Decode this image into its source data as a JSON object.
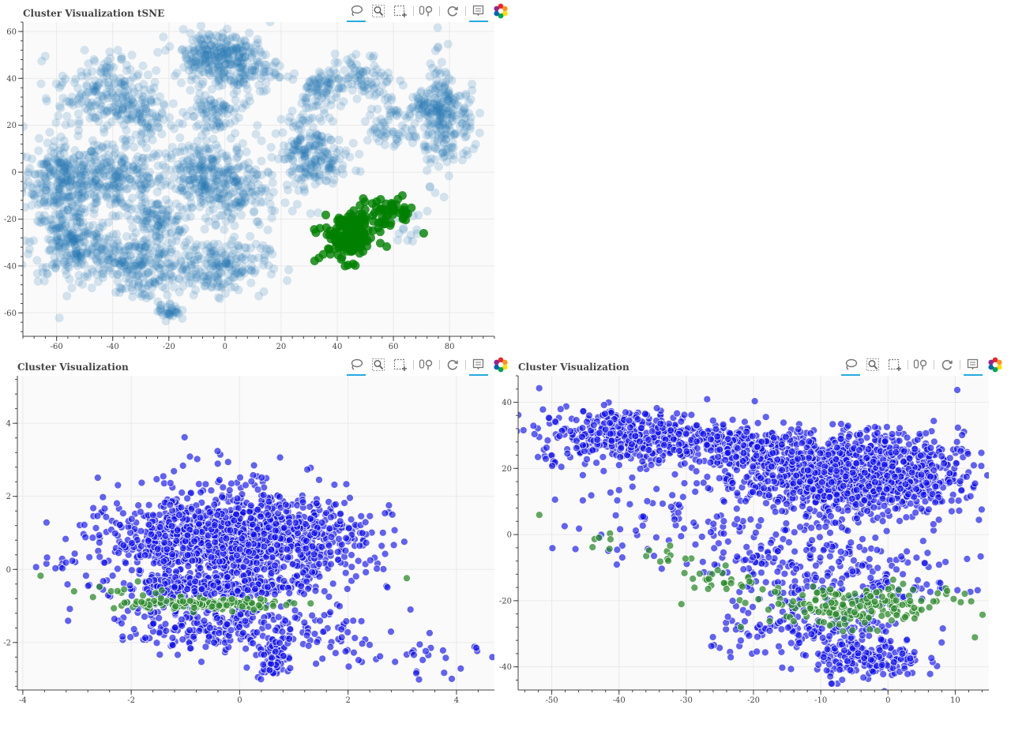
{
  "toolbar": {
    "tools": [
      {
        "icon": "lasso-select-icon",
        "active": true
      },
      {
        "icon": "box-zoom-icon",
        "active": false
      },
      {
        "icon": "box-select-icon",
        "active": false
      },
      {
        "icon": "wheel-zoom-icon",
        "active": false
      },
      {
        "icon": "reset-icon",
        "active": false
      },
      {
        "icon": "hover-tooltip-icon",
        "active": true
      },
      {
        "icon": "bokeh-logo-icon",
        "active": false
      }
    ]
  },
  "colors": {
    "background": "#fafafa",
    "grid": "#e9e9e9",
    "axis": "#444444",
    "blue_cluster": "#1f77b4",
    "green_cluster": "#008000",
    "blue_point": "#1010f0",
    "green_point": "#2e8b2e"
  },
  "chart_data": [
    {
      "type": "scatter",
      "title": "Cluster Visualization tSNE",
      "xlim": [
        -72,
        96
      ],
      "ylim": [
        -70,
        64
      ],
      "xticks": [
        -60,
        -40,
        -20,
        0,
        20,
        40,
        60,
        80
      ],
      "yticks": [
        -60,
        -40,
        -20,
        0,
        20,
        40,
        60
      ],
      "grid": true,
      "series": [
        {
          "color": "#1f77b4",
          "opacity": 0.18,
          "clusters": [
            {
              "cx": -58,
              "cy": -3,
              "sx": 7,
              "sy": 8,
              "n": 260
            },
            {
              "cx": -38,
              "cy": -3,
              "sx": 9,
              "sy": 7,
              "n": 230
            },
            {
              "cx": -55,
              "cy": -30,
              "sx": 7,
              "sy": 8,
              "n": 220
            },
            {
              "cx": -33,
              "cy": -38,
              "sx": 10,
              "sy": 6,
              "n": 230
            },
            {
              "cx": -25,
              "cy": -20,
              "sx": 5,
              "sy": 4,
              "n": 90
            },
            {
              "cx": -5,
              "cy": -2,
              "sx": 8,
              "sy": 8,
              "n": 160
            },
            {
              "cx": 5,
              "cy": -10,
              "sx": 7,
              "sy": 9,
              "n": 140
            },
            {
              "cx": -3,
              "cy": -40,
              "sx": 9,
              "sy": 6,
              "n": 200
            },
            {
              "cx": -42,
              "cy": 33,
              "sx": 9,
              "sy": 9,
              "n": 230
            },
            {
              "cx": -27,
              "cy": 22,
              "sx": 5,
              "sy": 5,
              "n": 60
            },
            {
              "cx": -5,
              "cy": 50,
              "sx": 7,
              "sy": 5,
              "n": 180
            },
            {
              "cx": 5,
              "cy": 45,
              "sx": 7,
              "sy": 7,
              "n": 160
            },
            {
              "cx": -5,
              "cy": 25,
              "sx": 5,
              "sy": 5,
              "n": 80
            },
            {
              "cx": -12,
              "cy": -2,
              "sx": 5,
              "sy": 6,
              "n": 70
            },
            {
              "cx": -30,
              "cy": -50,
              "sx": 4,
              "sy": 3,
              "n": 25
            },
            {
              "cx": -20,
              "cy": -59,
              "sx": 2,
              "sy": 2,
              "n": 35
            },
            {
              "cx": 30,
              "cy": 10,
              "sx": 5,
              "sy": 9,
              "n": 190
            },
            {
              "cx": 33,
              "cy": 36,
              "sx": 3,
              "sy": 4,
              "n": 60
            },
            {
              "cx": 48,
              "cy": 40,
              "sx": 6,
              "sy": 5,
              "n": 90
            },
            {
              "cx": 60,
              "cy": 15,
              "sx": 5,
              "sy": 3,
              "n": 40
            },
            {
              "cx": 77,
              "cy": 22,
              "sx": 3,
              "sy": 12,
              "n": 170
            },
            {
              "cx": 84,
              "cy": 22,
              "sx": 3,
              "sy": 8,
              "n": 60
            },
            {
              "cx": 70,
              "cy": 30,
              "sx": 3,
              "sy": 4,
              "n": 40
            },
            {
              "cx": 58,
              "cy": 26,
              "sx": 3,
              "sy": 3,
              "n": 30
            },
            {
              "cx": 65,
              "cy": -25,
              "sx": 3,
              "sy": 4,
              "n": 15
            },
            {
              "cx": 40,
              "cy": 2,
              "sx": 4,
              "sy": 3,
              "n": 25
            }
          ]
        },
        {
          "color": "#008000",
          "opacity": 0.8,
          "clusters": [
            {
              "cx": 44,
              "cy": -28,
              "sx": 5,
              "sy": 5,
              "n": 150
            },
            {
              "cx": 58,
              "cy": -17,
              "sx": 5,
              "sy": 3,
              "n": 50
            },
            {
              "cx": 46,
              "cy": -20,
              "sx": 3,
              "sy": 3,
              "n": 20
            }
          ]
        }
      ]
    },
    {
      "type": "scatter",
      "title": "Cluster Visualization",
      "xlim": [
        -4.1,
        4.7
      ],
      "ylim": [
        -3.3,
        5.3
      ],
      "xticks": [
        -4,
        -2,
        0,
        2,
        4
      ],
      "yticks": [
        -2,
        0,
        2,
        4
      ],
      "grid": true,
      "series": [
        {
          "color": "#1010f0",
          "opacity": 0.65,
          "clusters": [
            {
              "cx": -0.1,
              "cy": 0.8,
              "sx": 1.15,
              "sy": 0.55,
              "n": 1400
            },
            {
              "cx": -0.5,
              "cy": -0.5,
              "sx": 0.9,
              "sy": 0.12,
              "n": 300
            },
            {
              "cx": -0.4,
              "cy": -1.5,
              "sx": 0.9,
              "sy": 0.35,
              "n": 260
            },
            {
              "cx": 0.6,
              "cy": -2.4,
              "sx": 0.15,
              "sy": 0.3,
              "n": 80
            },
            {
              "cx": 0.1,
              "cy": 2.2,
              "sx": 1.0,
              "sy": 0.6,
              "n": 70
            },
            {
              "cx": 3.0,
              "cy": -2.3,
              "sx": 0.8,
              "sy": 0.35,
              "n": 35
            },
            {
              "cx": -3.4,
              "cy": 0.2,
              "sx": 0.2,
              "sy": 0.1,
              "n": 8
            },
            {
              "cx": 1.5,
              "cy": -1.7,
              "sx": 0.5,
              "sy": 0.5,
              "n": 40
            }
          ]
        },
        {
          "color": "#2e8b2e",
          "opacity": 0.75,
          "clusters": [
            {
              "cx": -0.6,
              "cy": -0.95,
              "sx": 0.75,
              "sy": 0.08,
              "n": 150
            },
            {
              "cx": -2.2,
              "cy": -0.6,
              "sx": 0.4,
              "sy": 0.12,
              "n": 10
            },
            {
              "cx": -3.6,
              "cy": -0.1,
              "sx": 0.05,
              "sy": 0.05,
              "n": 1
            },
            {
              "cx": 3.2,
              "cy": -0.4,
              "sx": 0.05,
              "sy": 0.05,
              "n": 1
            }
          ]
        }
      ]
    },
    {
      "type": "scatter",
      "title": "Cluster Visualization",
      "xlim": [
        -55,
        15
      ],
      "ylim": [
        -47,
        48
      ],
      "xticks": [
        -50,
        -40,
        -30,
        -20,
        -10,
        0,
        10
      ],
      "yticks": [
        -40,
        -20,
        0,
        20,
        40
      ],
      "grid": true,
      "series": [
        {
          "color": "#1010f0",
          "opacity": 0.65,
          "clusters": [
            {
              "cx": -5,
              "cy": 18,
              "sx": 8,
              "sy": 6,
              "n": 1300
            },
            {
              "cx": -38,
              "cy": 30,
              "sx": 7,
              "sy": 4,
              "n": 420
            },
            {
              "cx": -22,
              "cy": 26,
              "sx": 6,
              "sy": 4,
              "n": 250
            },
            {
              "cx": -12,
              "cy": -8,
              "sx": 7,
              "sy": 7,
              "n": 200
            },
            {
              "cx": -3,
              "cy": -38,
              "sx": 4,
              "sy": 3,
              "n": 180
            },
            {
              "cx": -10,
              "cy": -30,
              "sx": 8,
              "sy": 4,
              "n": 160
            },
            {
              "cx": -28,
              "cy": 5,
              "sx": 8,
              "sy": 8,
              "n": 60
            },
            {
              "cx": -38,
              "cy": 8,
              "sx": 6,
              "sy": 8,
              "n": 40
            },
            {
              "cx": -50,
              "cy": 22,
              "sx": 1,
              "sy": 1,
              "n": 4
            },
            {
              "cx": 2,
              "cy": -15,
              "sx": 5,
              "sy": 4,
              "n": 60
            }
          ]
        },
        {
          "color": "#2e8b2e",
          "opacity": 0.75,
          "clusters": [
            {
              "cx": -5,
              "cy": -22,
              "sx": 7,
              "sy": 3,
              "n": 180
            },
            {
              "cx": -24,
              "cy": -13,
              "sx": 3,
              "sy": 3,
              "n": 30
            },
            {
              "cx": -42,
              "cy": -3,
              "sx": 1.5,
              "sy": 1.5,
              "n": 6
            },
            {
              "cx": -31,
              "cy": -8,
              "sx": 2,
              "sy": 2,
              "n": 10
            },
            {
              "cx": -52,
              "cy": 6,
              "sx": 0.3,
              "sy": 0.3,
              "n": 1
            },
            {
              "cx": 12,
              "cy": -20,
              "sx": 0.3,
              "sy": 0.3,
              "n": 1
            },
            {
              "cx": 9,
              "cy": -17,
              "sx": 0.5,
              "sy": 1,
              "n": 3
            }
          ]
        }
      ]
    }
  ]
}
